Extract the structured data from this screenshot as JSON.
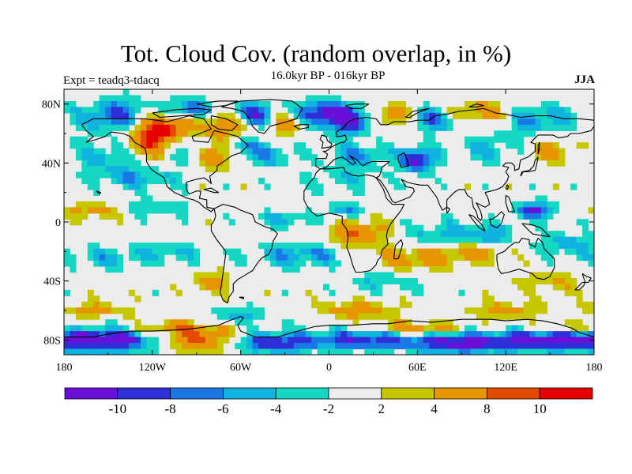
{
  "header": {
    "title": "Tot. Cloud Cov. (random overlap, in %)",
    "subtitle": "16.0kyr BP - 016kyr BP",
    "left_label": "Expt = teadq3-tdacq",
    "right_label": "JJA"
  },
  "map": {
    "projection": "cylindrical-equidistant",
    "lon_range": [
      -180,
      180
    ],
    "lat_range": [
      -90,
      90
    ],
    "lon_ticks": [
      {
        "value": -180,
        "label": "180"
      },
      {
        "value": -120,
        "label": "120W"
      },
      {
        "value": -60,
        "label": "60W"
      },
      {
        "value": 0,
        "label": "0"
      },
      {
        "value": 60,
        "label": "60E"
      },
      {
        "value": 120,
        "label": "120E"
      },
      {
        "value": 180,
        "label": "180"
      }
    ],
    "lat_ticks": [
      {
        "value": 80,
        "label": "80N"
      },
      {
        "value": 40,
        "label": "40N"
      },
      {
        "value": 0,
        "label": "0"
      },
      {
        "value": -40,
        "label": "40S"
      },
      {
        "value": -80,
        "label": "80S"
      }
    ]
  },
  "colorbar": {
    "levels": [
      -10,
      -8,
      -6,
      -4,
      -2,
      2,
      4,
      8,
      10
    ],
    "labels": [
      "-10",
      "-8",
      "-6",
      "-4",
      "-2",
      "2",
      "4",
      "8",
      "10"
    ],
    "colors": [
      "#6a0fd8",
      "#2f2fd8",
      "#1a78e6",
      "#10b2e0",
      "#14d7c4",
      "#ececec",
      "#c7c700",
      "#e69600",
      "#e24a00",
      "#e60000"
    ]
  }
}
